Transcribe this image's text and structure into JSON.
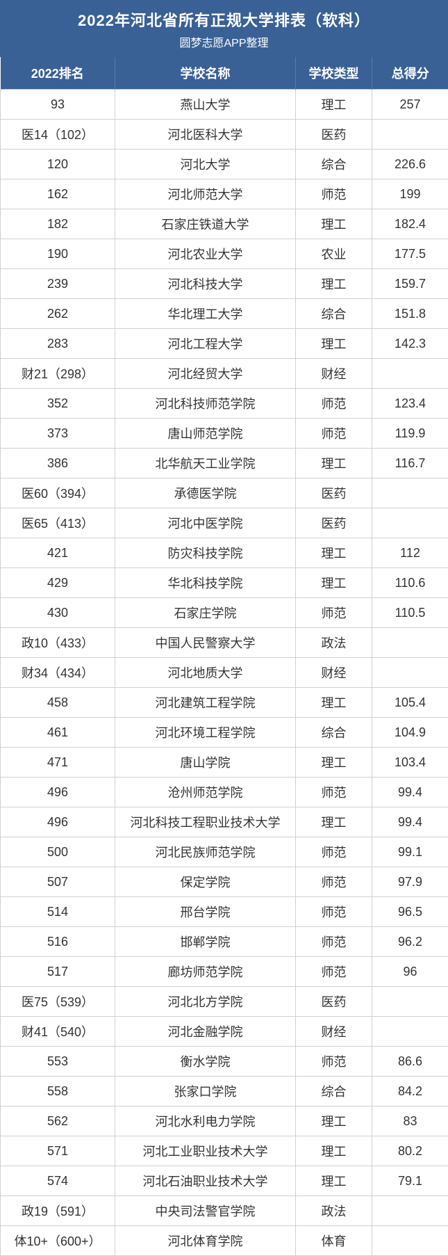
{
  "header": {
    "title": "2022年河北省所有正规大学排表（软科）",
    "subtitle": "圆梦志愿APP整理"
  },
  "table": {
    "columns": [
      "2022排名",
      "学校名称",
      "学校类型",
      "总得分"
    ],
    "rows": [
      [
        "93",
        "燕山大学",
        "理工",
        "257"
      ],
      [
        "医14（102）",
        "河北医科大学",
        "医药",
        ""
      ],
      [
        "120",
        "河北大学",
        "综合",
        "226.6"
      ],
      [
        "162",
        "河北师范大学",
        "师范",
        "199"
      ],
      [
        "182",
        "石家庄铁道大学",
        "理工",
        "182.4"
      ],
      [
        "190",
        "河北农业大学",
        "农业",
        "177.5"
      ],
      [
        "239",
        "河北科技大学",
        "理工",
        "159.7"
      ],
      [
        "262",
        "华北理工大学",
        "综合",
        "151.8"
      ],
      [
        "283",
        "河北工程大学",
        "理工",
        "142.3"
      ],
      [
        "财21（298）",
        "河北经贸大学",
        "财经",
        ""
      ],
      [
        "352",
        "河北科技师范学院",
        "师范",
        "123.4"
      ],
      [
        "373",
        "唐山师范学院",
        "师范",
        "119.9"
      ],
      [
        "386",
        "北华航天工业学院",
        "理工",
        "116.7"
      ],
      [
        "医60（394）",
        "承德医学院",
        "医药",
        ""
      ],
      [
        "医65（413）",
        "河北中医学院",
        "医药",
        ""
      ],
      [
        "421",
        "防灾科技学院",
        "理工",
        "112"
      ],
      [
        "429",
        "华北科技学院",
        "理工",
        "110.6"
      ],
      [
        "430",
        "石家庄学院",
        "师范",
        "110.5"
      ],
      [
        "政10（433）",
        "中国人民警察大学",
        "政法",
        ""
      ],
      [
        "财34（434）",
        "河北地质大学",
        "财经",
        ""
      ],
      [
        "458",
        "河北建筑工程学院",
        "理工",
        "105.4"
      ],
      [
        "461",
        "河北环境工程学院",
        "综合",
        "104.9"
      ],
      [
        "471",
        "唐山学院",
        "理工",
        "103.4"
      ],
      [
        "496",
        "沧州师范学院",
        "师范",
        "99.4"
      ],
      [
        "496",
        "河北科技工程职业技术大学",
        "理工",
        "99.4"
      ],
      [
        "500",
        "河北民族师范学院",
        "师范",
        "99.1"
      ],
      [
        "507",
        "保定学院",
        "师范",
        "97.9"
      ],
      [
        "514",
        "邢台学院",
        "师范",
        "96.5"
      ],
      [
        "516",
        "邯郸学院",
        "师范",
        "96.2"
      ],
      [
        "517",
        "廊坊师范学院",
        "师范",
        "96"
      ],
      [
        "医75（539）",
        "河北北方学院",
        "医药",
        ""
      ],
      [
        "财41（540）",
        "河北金融学院",
        "财经",
        ""
      ],
      [
        "553",
        "衡水学院",
        "师范",
        "86.6"
      ],
      [
        "558",
        "张家口学院",
        "综合",
        "84.2"
      ],
      [
        "562",
        "河北水利电力学院",
        "理工",
        "83"
      ],
      [
        "571",
        "河北工业职业技术大学",
        "理工",
        "80.2"
      ],
      [
        "574",
        "河北石油职业技术大学",
        "理工",
        "79.1"
      ],
      [
        "政19（591）",
        "中央司法警官学院",
        "政法",
        ""
      ],
      [
        "体10+（600+）",
        "河北体育学院",
        "体育",
        ""
      ]
    ]
  },
  "colors": {
    "header_bg": "#3a6196",
    "header_text": "#ffffff",
    "cell_border": "#d0d0d0",
    "cell_text": "#333333"
  }
}
